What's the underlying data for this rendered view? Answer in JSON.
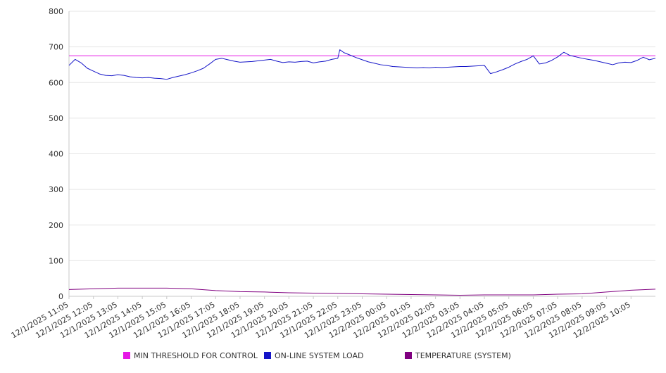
{
  "chart_data": {
    "type": "line",
    "ylim": [
      0,
      800
    ],
    "y_ticks": [
      0,
      100,
      200,
      300,
      400,
      500,
      600,
      700,
      800
    ],
    "x_tick_labels": [
      "12/1/2025 11:05",
      "12/1/2025 12:05",
      "12/1/2025 13:05",
      "12/1/2025 14:05",
      "12/1/2025 15:05",
      "12/1/2025 16:05",
      "12/1/2025 17:05",
      "12/1/2025 18:05",
      "12/1/2025 19:05",
      "12/1/2025 20:05",
      "12/1/2025 21:05",
      "12/1/2025 22:05",
      "12/1/2025 23:05",
      "12/2/2025 00:05",
      "12/2/2025 01:05",
      "12/2/2025 02:05",
      "12/2/2025 03:05",
      "12/2/2025 04:05",
      "12/2/2025 05:05",
      "12/2/2025 06:05",
      "12/2/2025 07:05",
      "12/2/2025 08:05",
      "12/2/2025 09:05",
      "12/2/2025 10:05"
    ],
    "grid": "horizontal",
    "legend_position": "bottom",
    "series": [
      {
        "name": "MIN THRESHOLD FOR CONTROL",
        "color": "#e619e6",
        "x": [
          "12/1/2025 11:05",
          "12/2/2025 11:05"
        ],
        "values": [
          675,
          675
        ]
      },
      {
        "name": "ON-LINE SYSTEM LOAD",
        "color": "#1414c8",
        "x": [
          "12/1/2025 11:05",
          "12/1/2025 11:20",
          "12/1/2025 11:35",
          "12/1/2025 11:50",
          "12/1/2025 12:05",
          "12/1/2025 12:20",
          "12/1/2025 12:35",
          "12/1/2025 12:50",
          "12/1/2025 13:05",
          "12/1/2025 13:20",
          "12/1/2025 13:35",
          "12/1/2025 13:50",
          "12/1/2025 14:05",
          "12/1/2025 14:20",
          "12/1/2025 14:35",
          "12/1/2025 14:50",
          "12/1/2025 15:05",
          "12/1/2025 15:20",
          "12/1/2025 15:35",
          "12/1/2025 15:50",
          "12/1/2025 16:05",
          "12/1/2025 16:20",
          "12/1/2025 16:35",
          "12/1/2025 16:50",
          "12/1/2025 17:05",
          "12/1/2025 17:20",
          "12/1/2025 17:35",
          "12/1/2025 17:50",
          "12/1/2025 18:05",
          "12/1/2025 18:20",
          "12/1/2025 18:35",
          "12/1/2025 18:50",
          "12/1/2025 19:05",
          "12/1/2025 19:20",
          "12/1/2025 19:35",
          "12/1/2025 19:50",
          "12/1/2025 20:05",
          "12/1/2025 20:20",
          "12/1/2025 20:35",
          "12/1/2025 20:50",
          "12/1/2025 21:05",
          "12/1/2025 21:20",
          "12/1/2025 21:35",
          "12/1/2025 21:50",
          "12/1/2025 22:05",
          "12/1/2025 22:10",
          "12/1/2025 22:20",
          "12/1/2025 22:35",
          "12/1/2025 22:50",
          "12/1/2025 23:05",
          "12/1/2025 23:20",
          "12/1/2025 23:35",
          "12/1/2025 23:50",
          "12/2/2025 00:05",
          "12/2/2025 00:20",
          "12/2/2025 00:35",
          "12/2/2025 00:50",
          "12/2/2025 01:05",
          "12/2/2025 01:20",
          "12/2/2025 01:35",
          "12/2/2025 01:50",
          "12/2/2025 02:05",
          "12/2/2025 02:20",
          "12/2/2025 02:35",
          "12/2/2025 02:50",
          "12/2/2025 03:05",
          "12/2/2025 03:20",
          "12/2/2025 03:35",
          "12/2/2025 03:50",
          "12/2/2025 04:05",
          "12/2/2025 04:20",
          "12/2/2025 04:35",
          "12/2/2025 04:50",
          "12/2/2025 05:05",
          "12/2/2025 05:20",
          "12/2/2025 05:35",
          "12/2/2025 05:50",
          "12/2/2025 06:05",
          "12/2/2025 06:20",
          "12/2/2025 06:35",
          "12/2/2025 06:50",
          "12/2/2025 07:05",
          "12/2/2025 07:20",
          "12/2/2025 07:35",
          "12/2/2025 07:50",
          "12/2/2025 08:05",
          "12/2/2025 08:20",
          "12/2/2025 08:35",
          "12/2/2025 08:50",
          "12/2/2025 09:05",
          "12/2/2025 09:20",
          "12/2/2025 09:35",
          "12/2/2025 09:50",
          "12/2/2025 10:05",
          "12/2/2025 10:20",
          "12/2/2025 10:35",
          "12/2/2025 10:50",
          "12/2/2025 11:05"
        ],
        "values": [
          648,
          665,
          655,
          640,
          632,
          624,
          620,
          619,
          622,
          620,
          616,
          614,
          613,
          614,
          612,
          611,
          609,
          614,
          618,
          622,
          627,
          633,
          640,
          652,
          665,
          668,
          664,
          660,
          657,
          658,
          659,
          661,
          663,
          665,
          660,
          656,
          658,
          657,
          659,
          660,
          655,
          658,
          660,
          665,
          668,
          692,
          684,
          677,
          670,
          664,
          658,
          654,
          650,
          648,
          645,
          644,
          643,
          642,
          641,
          642,
          641,
          643,
          642,
          643,
          644,
          645,
          645,
          646,
          647,
          648,
          625,
          630,
          636,
          643,
          652,
          659,
          665,
          675,
          652,
          655,
          662,
          672,
          685,
          676,
          672,
          668,
          665,
          662,
          658,
          654,
          650,
          655,
          657,
          656,
          662,
          671,
          664,
          668
        ]
      },
      {
        "name": "TEMPERATURE (SYSTEM)",
        "color": "#800080",
        "x": [
          "12/1/2025 11:05",
          "12/1/2025 12:05",
          "12/1/2025 13:05",
          "12/1/2025 14:05",
          "12/1/2025 15:05",
          "12/1/2025 16:05",
          "12/1/2025 17:05",
          "12/1/2025 18:05",
          "12/1/2025 19:05",
          "12/1/2025 20:05",
          "12/1/2025 21:05",
          "12/1/2025 22:05",
          "12/1/2025 23:05",
          "12/2/2025 00:05",
          "12/2/2025 01:05",
          "12/2/2025 02:05",
          "12/2/2025 03:05",
          "12/2/2025 04:05",
          "12/2/2025 05:05",
          "12/2/2025 06:05",
          "12/2/2025 07:05",
          "12/2/2025 08:05",
          "12/2/2025 09:05",
          "12/2/2025 10:05",
          "12/2/2025 11:05"
        ],
        "values": [
          19,
          21,
          23,
          23,
          23,
          21,
          16,
          13,
          12,
          10,
          9,
          8,
          7,
          6,
          5,
          4,
          3,
          4,
          4,
          4,
          6,
          7,
          12,
          17,
          20
        ]
      }
    ]
  }
}
